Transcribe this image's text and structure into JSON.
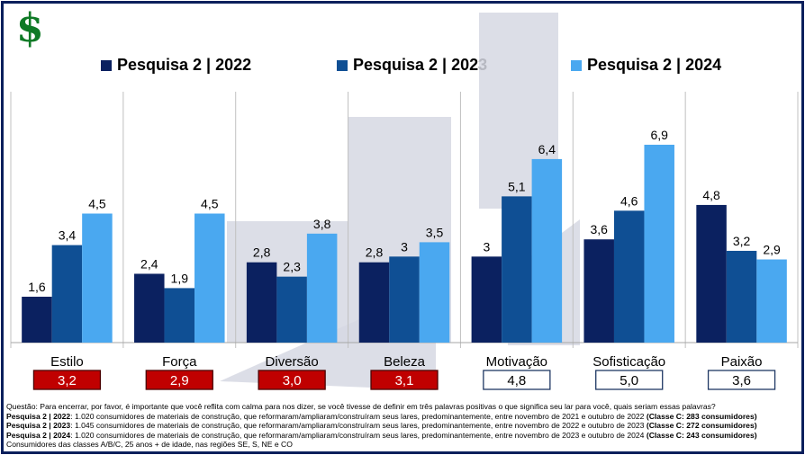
{
  "icon": {
    "symbol": "$",
    "name": "dollar-icon",
    "color": "#0f7a26"
  },
  "chart_data": {
    "type": "bar",
    "categories": [
      "Estilo",
      "Força",
      "Diversão",
      "Beleza",
      "Motivação",
      "Sofisticação",
      "Paixão"
    ],
    "series": [
      {
        "name": "Pesquisa 2 | 2022",
        "color": "#0b2160",
        "values": [
          1.6,
          2.4,
          2.8,
          2.8,
          3,
          3.6,
          4.8
        ],
        "labels": [
          "1,6",
          "2,4",
          "2,8",
          "2,8",
          "3",
          "3,6",
          "4,8"
        ]
      },
      {
        "name": "Pesquisa 2 | 2023",
        "color": "#0f4f94",
        "values": [
          3.4,
          1.9,
          2.3,
          3,
          5.1,
          4.6,
          3.2
        ],
        "labels": [
          "3,4",
          "1,9",
          "2,3",
          "3",
          "5,1",
          "4,6",
          "3,2"
        ]
      },
      {
        "name": "Pesquisa 2 | 2024",
        "color": "#4aa8f0",
        "values": [
          4.5,
          4.5,
          3.8,
          3.5,
          6.4,
          6.9,
          2.9
        ],
        "labels": [
          "4,5",
          "4,5",
          "3,8",
          "3,5",
          "6,4",
          "6,9",
          "2,9"
        ]
      }
    ],
    "ylim": [
      0,
      9
    ],
    "grid": false,
    "legend": "top",
    "summary_boxes": [
      {
        "value": "3,2",
        "highlight": true
      },
      {
        "value": "2,9",
        "highlight": true
      },
      {
        "value": "3,0",
        "highlight": true
      },
      {
        "value": "3,1",
        "highlight": true
      },
      {
        "value": "4,8",
        "highlight": false
      },
      {
        "value": "5,0",
        "highlight": false
      },
      {
        "value": "3,6",
        "highlight": false
      }
    ],
    "highlight_box_color": "#c00000"
  },
  "footer": {
    "question": "Questão: Para encerrar, por favor, é importante que você reflita com calma para nos dizer, se você tivesse de definir em três palavras positivas o que significa seu lar para você, quais seriam essas palavras?",
    "lines": [
      {
        "label": "Pesquisa 2 | 2022",
        "text": ": 1.020 consumidores de materiais de construção, que reformaram/ampliaram/construíram seus lares, predominantemente, entre novembro de 2021 e outubro de 2022 ",
        "bold_tail": "(Classe C: 283 consumidores)"
      },
      {
        "label": "Pesquisa 2 | 2023",
        "text": ": 1.045 consumidores de materiais de construção, que reformaram/ampliaram/construíram seus lares, predominantemente, entre novembro de 2022 e outubro de 2023 ",
        "bold_tail": "(Classe C: 272 consumidores)"
      },
      {
        "label": "Pesquisa 2 | 2024",
        "text": ": 1.020 consumidores de materiais de construção, que reformaram/ampliaram/construíram seus lares, predominantemente, entre novembro de 2023 e outubro de 2024 ",
        "bold_tail": "(Classe C: 243 consumidores)"
      }
    ],
    "note": "Consumidores das classes A/B/C, 25 anos + de idade, nas regiões SE, S, NE e CO"
  }
}
